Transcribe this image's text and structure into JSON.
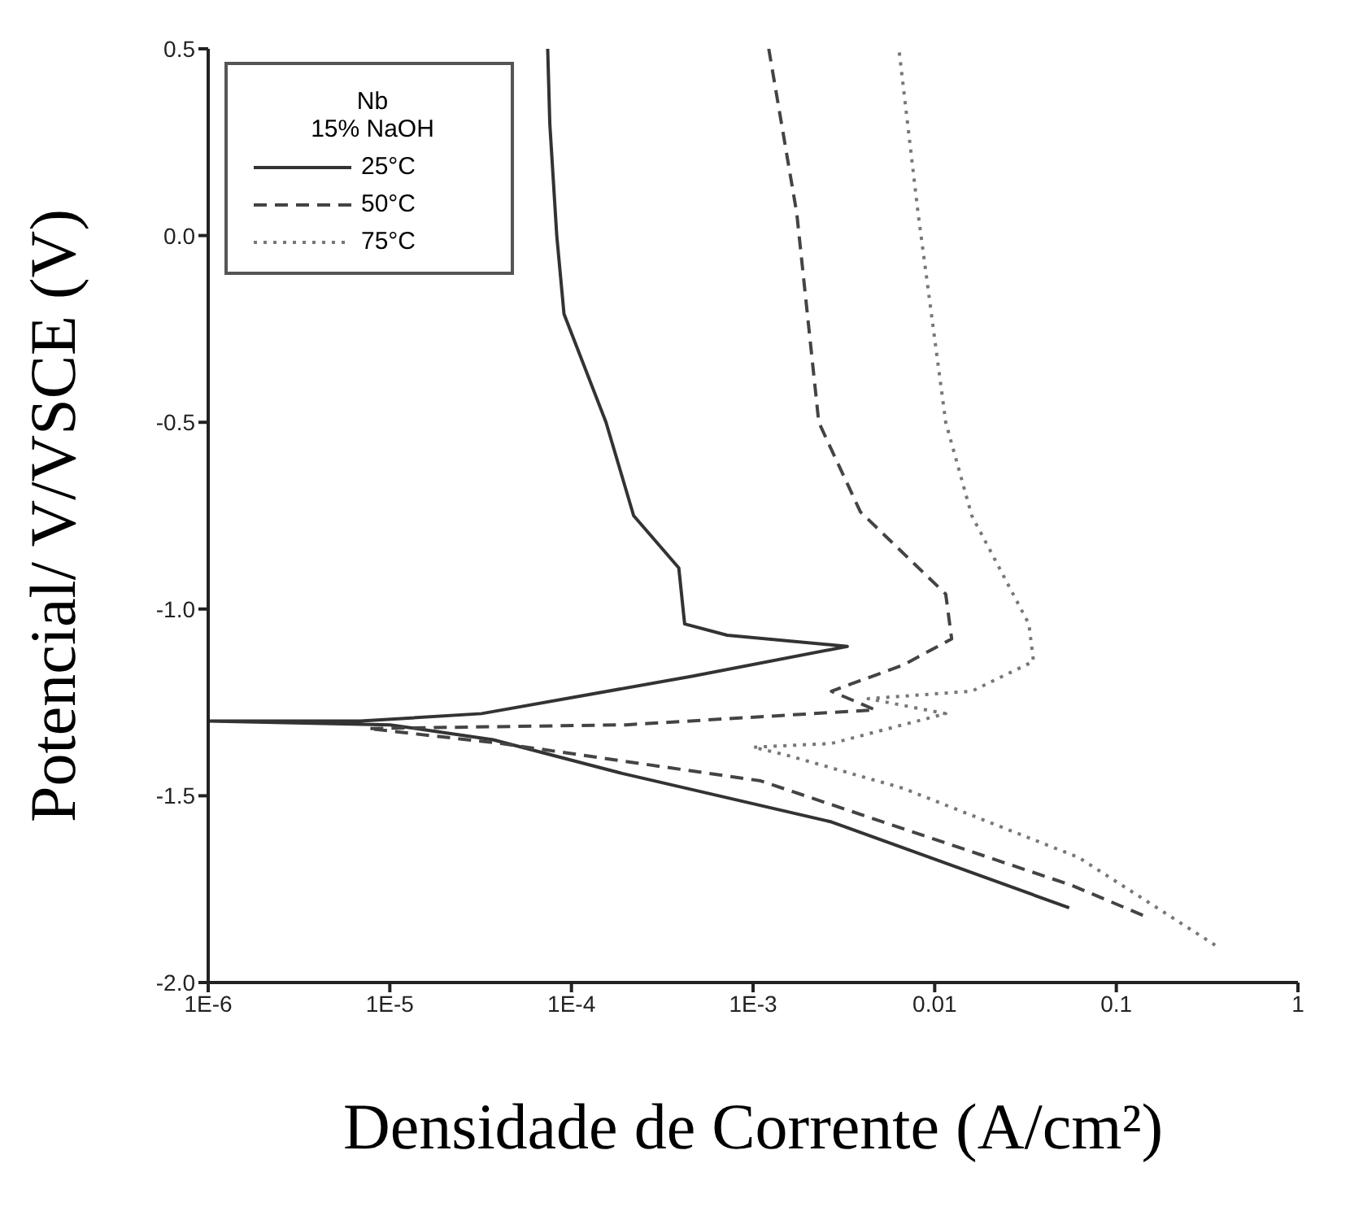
{
  "chart_data": {
    "type": "line",
    "xlabel": "Densidade de Corrente (A/cm²)",
    "ylabel": "Potencial/ V/VSCE (V)",
    "legend_title": "Nb\n15% NaOH",
    "legend": "top left",
    "log": "x",
    "grid": false,
    "marker": "none",
    "xlim": [
      1e-06,
      1
    ],
    "xticks": [
      {
        "value": 1e-06,
        "label": "1E-6"
      },
      {
        "value": 1e-05,
        "label": "1E-5"
      },
      {
        "value": 0.0001,
        "label": "1E-4"
      },
      {
        "value": 0.001,
        "label": "1E-3"
      },
      0.01,
      0.1,
      1
    ],
    "ylim": [
      -2.0,
      0.5
    ],
    "yticks": [
      {
        "value": -2,
        "label": "-2.0"
      },
      -1.5,
      {
        "value": -1,
        "label": "-1.0"
      },
      -0.5,
      {
        "value": 0,
        "label": "0.0"
      },
      0.5
    ],
    "series": [
      {
        "name": "25°C",
        "color": "#333333",
        "line_style": "solid",
        "x": [
          0.055,
          0.0027,
          0.00019,
          3.7e-05,
          1e-05,
          1e-06,
          6.9e-06,
          3.2e-05,
          0.00046,
          0.0033,
          0.00072,
          0.00042,
          0.00039,
          0.00022,
          0.000155,
          9.1e-05,
          8.3e-05,
          7.6e-05,
          7.4e-05
        ],
        "values": [
          -1.8,
          -1.57,
          -1.44,
          -1.35,
          -1.31,
          -1.3,
          -1.3,
          -1.28,
          -1.18,
          -1.1,
          -1.07,
          -1.04,
          -0.89,
          -0.75,
          -0.5,
          -0.21,
          0.0,
          0.3,
          0.5
        ]
      },
      {
        "name": "50°C",
        "color": "#444444",
        "line_style": "dashed",
        "x": [
          0.14,
          0.057,
          0.0011,
          4.1e-05,
          7.6e-06,
          0.0002,
          0.0047,
          0.0027,
          0.0067,
          0.0124,
          0.0115,
          0.0039,
          0.0023,
          0.00174,
          0.00122
        ],
        "values": [
          -1.82,
          -1.74,
          -1.46,
          -1.36,
          -1.32,
          -1.31,
          -1.27,
          -1.22,
          -1.15,
          -1.08,
          -0.96,
          -0.74,
          -0.5,
          0.06,
          0.5
        ]
      },
      {
        "name": "75°C",
        "color": "#777777",
        "line_style": "dotted",
        "x": [
          0.35,
          0.062,
          0.0067,
          0.0015,
          0.001,
          0.0027,
          0.0115,
          0.0043,
          0.016,
          0.035,
          0.033,
          0.016,
          0.0115,
          0.0081,
          0.00635
        ],
        "values": [
          -1.9,
          -1.665,
          -1.48,
          -1.39,
          -1.37,
          -1.36,
          -1.28,
          -1.24,
          -1.22,
          -1.14,
          -1.04,
          -0.75,
          -0.5,
          0.06,
          0.5
        ]
      }
    ]
  }
}
